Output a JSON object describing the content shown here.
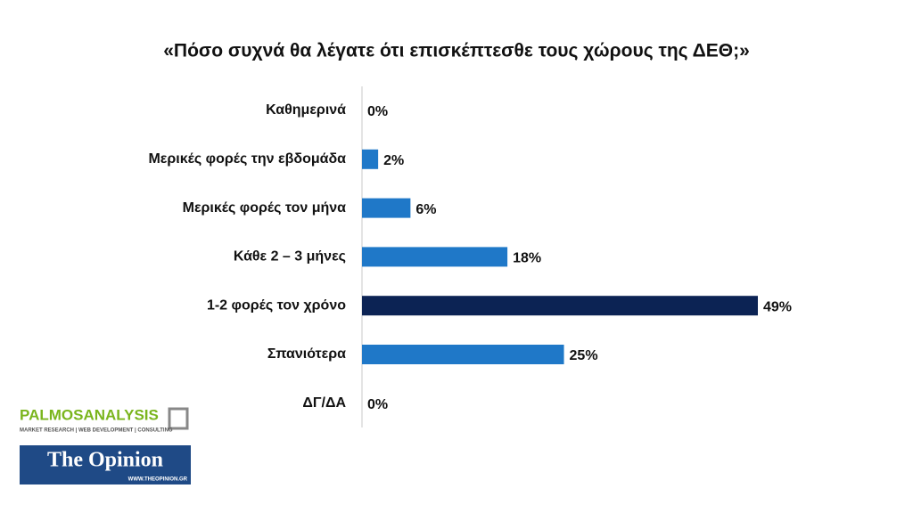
{
  "chart_data": {
    "type": "hbar",
    "title": "«Πόσο συχνά θα λέγατε ότι επισκέπτεσθε τους χώρους της ΔΕΘ;»",
    "categories": [
      "Καθημερινά",
      "Μερικές φορές την εβδομάδα",
      "Μερικές φορές τον μήνα",
      "Κάθε 2 – 3 μήνες",
      "1-2 φορές τον χρόνο",
      "Σπανιότερα",
      "ΔΓ/ΔΑ"
    ],
    "values": [
      0,
      2,
      6,
      18,
      49,
      25,
      0
    ],
    "value_labels": [
      "0%",
      "2%",
      "6%",
      "18%",
      "49%",
      "25%",
      "0%"
    ],
    "colors": [
      "#1f78c8",
      "#1f78c8",
      "#1f78c8",
      "#1f78c8",
      "#0c2354",
      "#1f78c8",
      "#a6a6a6"
    ]
  },
  "logos": {
    "palmos": "PALMOSANALYSIS",
    "palmos_tagline": "MARKET RESEARCH | WEB DEVELOPMENT | CONSULTING",
    "opinion": "The Opinion",
    "opinion_url": "WWW.THEOPINION.GR"
  }
}
